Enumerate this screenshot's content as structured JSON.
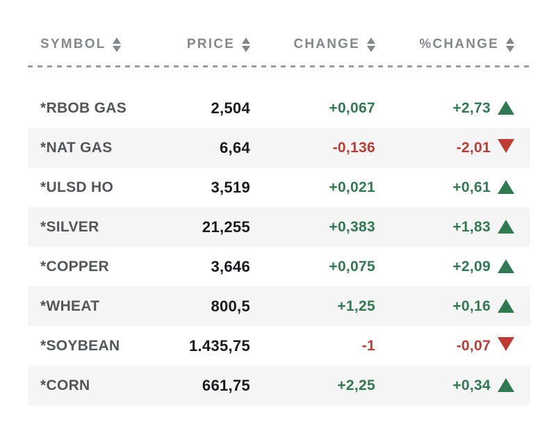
{
  "table": {
    "columns": [
      {
        "label": "SYMBOL"
      },
      {
        "label": "PRICE"
      },
      {
        "label": "CHANGE"
      },
      {
        "label": "%CHANGE"
      }
    ],
    "rows": [
      {
        "symbol": "*RBOB GAS",
        "price": "2,504",
        "change": "+0,067",
        "pct_change": "+2,73",
        "direction": "up"
      },
      {
        "symbol": "*NAT GAS",
        "price": "6,64",
        "change": "-0,136",
        "pct_change": "-2,01",
        "direction": "down"
      },
      {
        "symbol": "*ULSD HO",
        "price": "3,519",
        "change": "+0,021",
        "pct_change": "+0,61",
        "direction": "up"
      },
      {
        "symbol": "*SILVER",
        "price": "21,255",
        "change": "+0,383",
        "pct_change": "+1,83",
        "direction": "up"
      },
      {
        "symbol": "*COPPER",
        "price": "3,646",
        "change": "+0,075",
        "pct_change": "+2,09",
        "direction": "up"
      },
      {
        "symbol": "*WHEAT",
        "price": "800,5",
        "change": "+1,25",
        "pct_change": "+0,16",
        "direction": "up"
      },
      {
        "symbol": "*SOYBEAN",
        "price": "1.435,75",
        "change": "-1",
        "pct_change": "-0,07",
        "direction": "down"
      },
      {
        "symbol": "*CORN",
        "price": "661,75",
        "change": "+2,25",
        "pct_change": "+0,34",
        "direction": "up"
      }
    ],
    "colors": {
      "positive": "#2f7a50",
      "negative": "#bf3a32",
      "header_text": "#85878a",
      "symbol_text": "#55565a",
      "price_text": "#1a1a1c",
      "row_alt_bg": "#f5f5f6",
      "divider": "#9b9da0"
    }
  }
}
